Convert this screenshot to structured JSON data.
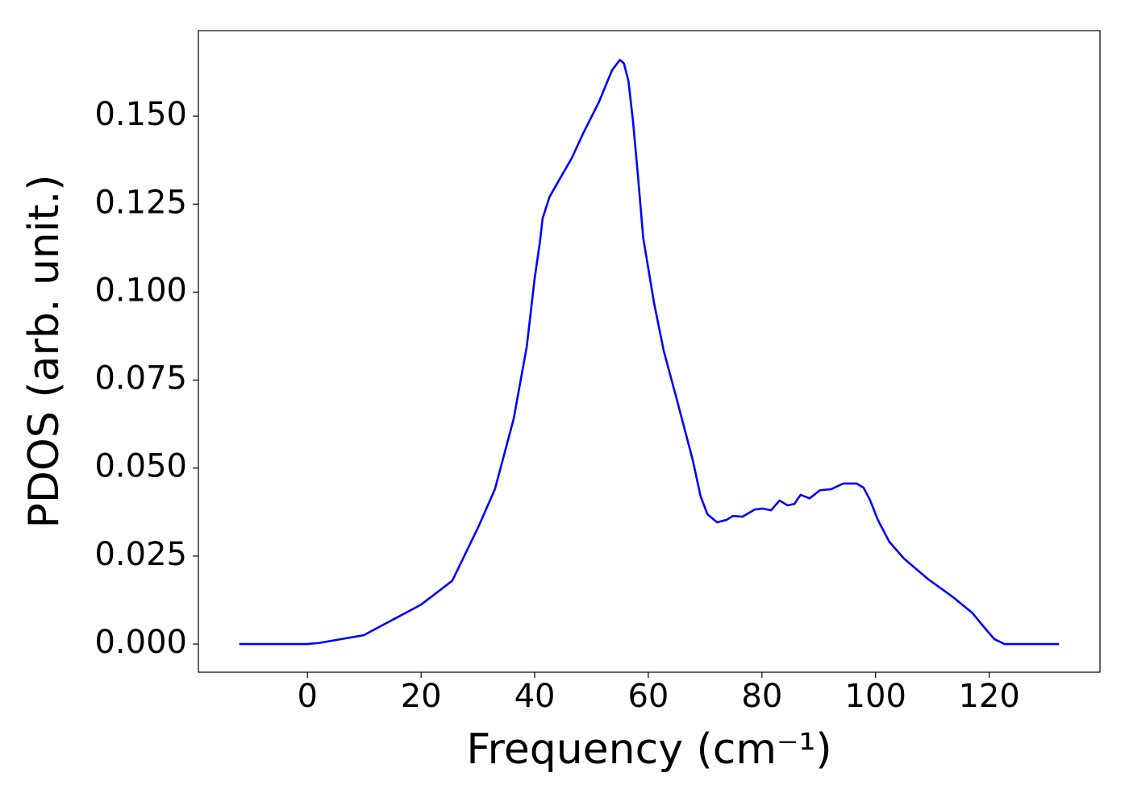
{
  "chart_data": {
    "type": "line",
    "xlabel": "Frequency (cm⁻¹)",
    "ylabel": "PDOS (arb. unit.)",
    "series": [
      {
        "color": "#0000ff",
        "x": [
          -12,
          0,
          2,
          9.9,
          20,
          25.5,
          30,
          33,
          36.3,
          38.6,
          40,
          40.9,
          41.4,
          42.6,
          44,
          46.5,
          48.5,
          51.3,
          53.6,
          55,
          55.7,
          56.5,
          57.3,
          58.2,
          59.1,
          61,
          62.7,
          65,
          67.8,
          69.2,
          70.4,
          72.1,
          73.8,
          74.9,
          76.6,
          78.7,
          80.1,
          81.6,
          83.1,
          84.5,
          85.7,
          86.8,
          88.4,
          90.2,
          92.2,
          94.3,
          96.7,
          97.9,
          99,
          100.4,
          102.4,
          105,
          109.2,
          113.5,
          117,
          119.1,
          120.9,
          122.7,
          132.3
        ],
        "values": [
          0,
          0,
          0.0003,
          0.0025,
          0.0112,
          0.018,
          0.033,
          0.044,
          0.064,
          0.0845,
          0.104,
          0.114,
          0.121,
          0.127,
          0.131,
          0.138,
          0.145,
          0.154,
          0.163,
          0.166,
          0.165,
          0.16,
          0.1486,
          0.1326,
          0.1154,
          0.097,
          0.0834,
          0.0696,
          0.0524,
          0.042,
          0.0369,
          0.0346,
          0.0353,
          0.0364,
          0.0362,
          0.0382,
          0.0385,
          0.038,
          0.0408,
          0.0394,
          0.0398,
          0.0424,
          0.0414,
          0.0437,
          0.044,
          0.0456,
          0.0456,
          0.0444,
          0.041,
          0.0353,
          0.0291,
          0.0243,
          0.0185,
          0.0135,
          0.0089,
          0.0048,
          0.0014,
          0,
          0
        ]
      }
    ],
    "xlim": [
      -19.2,
      139.5
    ],
    "xticks": [
      0,
      20,
      40,
      60,
      80,
      100,
      120
    ],
    "ylim": [
      -0.008,
      0.1743
    ],
    "yticks": [
      {
        "value": 0,
        "label": "0.000"
      },
      {
        "value": 0.025,
        "label": "0.025"
      },
      {
        "value": 0.05,
        "label": "0.050"
      },
      {
        "value": 0.075,
        "label": "0.075"
      },
      {
        "value": 0.1,
        "label": "0.100"
      },
      {
        "value": 0.125,
        "label": "0.125"
      },
      {
        "value": 0.15,
        "label": "0.150"
      }
    ],
    "grid": false
  }
}
